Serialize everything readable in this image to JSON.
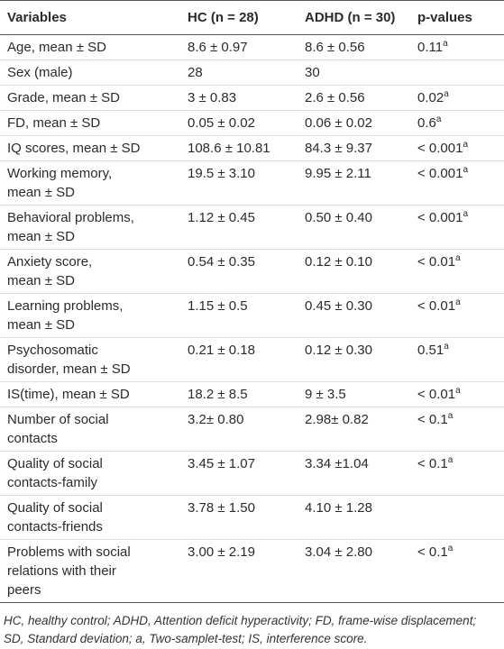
{
  "table": {
    "header": [
      "Variables",
      "HC (n = 28)",
      "ADHD (n = 30)",
      "p-values"
    ],
    "rows": [
      {
        "variable": [
          "Age, mean ± SD"
        ],
        "hc": "8.6 ± 0.97",
        "adhd": "8.6 ± 0.56",
        "p": {
          "text": "0.11",
          "sup": "a"
        }
      },
      {
        "variable": [
          "Sex (male)"
        ],
        "hc": "28",
        "adhd": "30",
        "p": null
      },
      {
        "variable": [
          "Grade, mean ± SD"
        ],
        "hc": "3 ± 0.83",
        "adhd": "2.6 ± 0.56",
        "p": {
          "text": "0.02",
          "sup": "a"
        }
      },
      {
        "variable": [
          "FD, mean ± SD"
        ],
        "hc": "0.05 ± 0.02",
        "adhd": "0.06 ± 0.02",
        "p": {
          "text": "0.6",
          "sup": "a"
        }
      },
      {
        "variable": [
          "IQ scores, mean ± SD"
        ],
        "hc": "108.6 ± 10.81",
        "adhd": "84.3 ± 9.37",
        "p": {
          "text": "< 0.001",
          "sup": "a"
        }
      },
      {
        "variable": [
          "Working memory,",
          "mean ± SD"
        ],
        "hc": "19.5 ± 3.10",
        "adhd": "9.95 ± 2.11",
        "p": {
          "text": "< 0.001",
          "sup": "a"
        }
      },
      {
        "variable": [
          "Behavioral problems,",
          "mean ± SD"
        ],
        "hc": "1.12 ± 0.45",
        "adhd": "0.50 ± 0.40",
        "p": {
          "text": "< 0.001",
          "sup": "a"
        }
      },
      {
        "variable": [
          "Anxiety score,",
          "mean ± SD"
        ],
        "hc": "0.54 ± 0.35",
        "adhd": "0.12 ± 0.10",
        "p": {
          "text": "< 0.01",
          "sup": "a"
        }
      },
      {
        "variable": [
          "Learning problems,",
          "mean ± SD"
        ],
        "hc": "1.15 ± 0.5",
        "adhd": "0.45 ± 0.30",
        "p": {
          "text": "< 0.01",
          "sup": "a"
        }
      },
      {
        "variable": [
          "Psychosomatic",
          "disorder, mean ± SD"
        ],
        "hc": "0.21 ± 0.18",
        "adhd": "0.12 ± 0.30",
        "p": {
          "text": "0.51",
          "sup": "a"
        }
      },
      {
        "variable": [
          "IS(time), mean ± SD"
        ],
        "hc": "18.2 ± 8.5",
        "adhd": "9 ± 3.5",
        "p": {
          "text": "< 0.01",
          "sup": "a"
        }
      },
      {
        "variable": [
          "Number of social",
          "contacts"
        ],
        "hc": "3.2± 0.80",
        "adhd": "2.98± 0.82",
        "p": {
          "text": "< 0.1",
          "sup": "a"
        }
      },
      {
        "variable": [
          "Quality of social",
          "contacts-family"
        ],
        "hc": "3.45 ± 1.07",
        "adhd": "3.34 ±1.04",
        "p": {
          "text": "< 0.1",
          "sup": "a"
        }
      },
      {
        "variable": [
          "Quality of social",
          "contacts-friends"
        ],
        "hc": "3.78 ± 1.50",
        "adhd": "4.10 ± 1.28",
        "p": null
      },
      {
        "variable": [
          "Problems with social",
          "relations with their",
          "peers"
        ],
        "hc": "3.00 ± 2.19",
        "adhd": "3.04 ± 2.80",
        "p": {
          "text": "< 0.1",
          "sup": "a"
        }
      }
    ],
    "footnote": [
      "HC, healthy control; ADHD, Attention deficit hyperactivity; FD, frame-wise displacement;",
      "SD, Standard deviation; a, Two-samplet-test; IS, interference score."
    ]
  }
}
